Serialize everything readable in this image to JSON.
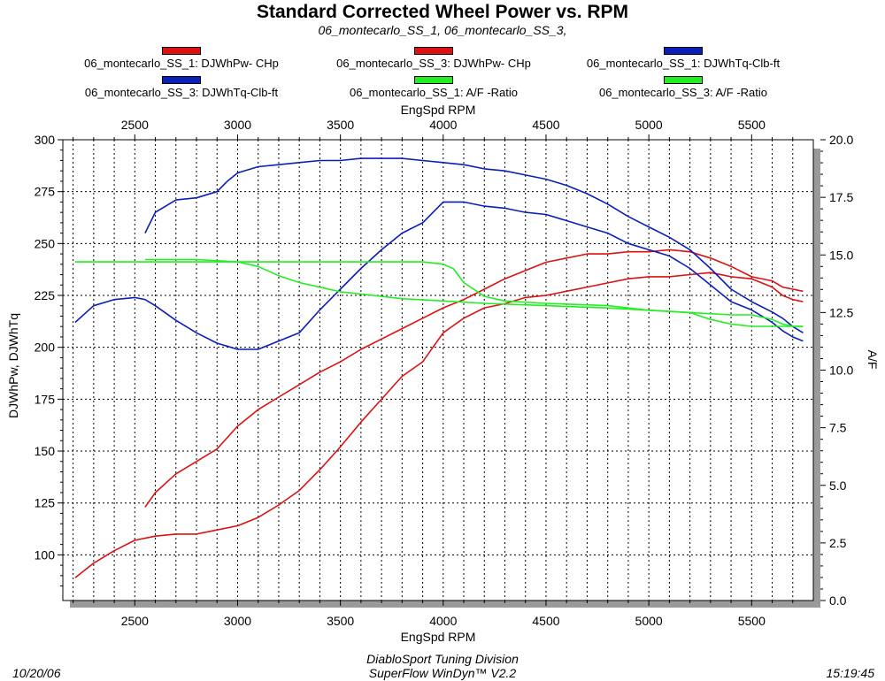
{
  "header": {
    "title": "Standard Corrected Wheel Power vs. RPM",
    "subtitle": "06_montecarlo_SS_1, 06_montecarlo_SS_3,"
  },
  "footer": {
    "date": "10/20/06",
    "line1": "DiabloSport Tuning Division",
    "line2": "SuperFlow WinDyn™ V2.2",
    "time": "15:19:45"
  },
  "chart_data": {
    "type": "line",
    "xlabel_top": "EngSpd  RPM",
    "xlabel_bottom": "EngSpd  RPM",
    "ylabel_left": "DJWhPw, DJWhTq",
    "ylabel_right": "A/F",
    "xlim": [
      2150,
      5800
    ],
    "ylim_left": [
      78,
      300
    ],
    "ylim_right": [
      0,
      20
    ],
    "x_ticks": [
      "2500",
      "3000",
      "3500",
      "4000",
      "4500",
      "5000",
      "5500"
    ],
    "y_left_ticks": [
      "100",
      "125",
      "150",
      "175",
      "200",
      "225",
      "250",
      "275",
      "300"
    ],
    "y_right_ticks": [
      "0.0",
      "2.5",
      "5.0",
      "7.5",
      "10.0",
      "12.5",
      "15.0",
      "17.5",
      "20.0"
    ],
    "grid": true,
    "legend_position": "top",
    "series": [
      {
        "name": "06_montecarlo_SS_1: DJWhPw- CHp",
        "color": "#dd1111",
        "axis": "left",
        "x": [
          2550,
          2600,
          2700,
          2800,
          2900,
          3000,
          3100,
          3200,
          3300,
          3400,
          3500,
          3600,
          3700,
          3800,
          3900,
          4000,
          4100,
          4200,
          4300,
          4400,
          4500,
          4600,
          4700,
          4800,
          4900,
          5000,
          5100,
          5200,
          5300,
          5400,
          5500,
          5600,
          5650,
          5700,
          5750
        ],
        "y": [
          123,
          130,
          139,
          145,
          151,
          162,
          170,
          176,
          182,
          188,
          193,
          199,
          204,
          209,
          214,
          219,
          223,
          228,
          233,
          237,
          241,
          243,
          245,
          245,
          246,
          246,
          247,
          246,
          243,
          239,
          234,
          232,
          229,
          228,
          227
        ]
      },
      {
        "name": "06_montecarlo_SS_3: DJWhPw- CHp",
        "color": "#dd1111",
        "axis": "left",
        "x": [
          2210,
          2300,
          2400,
          2500,
          2600,
          2700,
          2800,
          2900,
          3000,
          3100,
          3200,
          3300,
          3400,
          3500,
          3600,
          3700,
          3800,
          3900,
          4000,
          4100,
          4200,
          4300,
          4400,
          4500,
          4600,
          4700,
          4800,
          4900,
          5000,
          5100,
          5200,
          5300,
          5400,
          5500,
          5600,
          5650,
          5700,
          5750
        ],
        "y": [
          89,
          96,
          102,
          107,
          109,
          110,
          110,
          112,
          114,
          118,
          124,
          131,
          141,
          152,
          164,
          175,
          186,
          193,
          207,
          214,
          219,
          221,
          224,
          225,
          227,
          229,
          231,
          233,
          234,
          234,
          235,
          236,
          234,
          233,
          229,
          225,
          223,
          222
        ]
      },
      {
        "name": "06_montecarlo_SS_1: DJWhTq-Clb-ft",
        "color": "#0a1fb8",
        "axis": "left",
        "x": [
          2550,
          2600,
          2650,
          2700,
          2800,
          2900,
          2950,
          3000,
          3100,
          3200,
          3300,
          3400,
          3500,
          3600,
          3700,
          3800,
          3900,
          4000,
          4100,
          4200,
          4300,
          4400,
          4500,
          4600,
          4700,
          4800,
          4900,
          5000,
          5100,
          5200,
          5300,
          5400,
          5500,
          5600,
          5650,
          5700,
          5750
        ],
        "y": [
          255,
          265,
          268,
          271,
          272,
          275,
          280,
          284,
          287,
          288,
          289,
          290,
          290,
          291,
          291,
          291,
          290,
          289,
          288,
          286,
          285,
          283,
          281,
          278,
          274,
          269,
          263,
          258,
          253,
          247,
          238,
          228,
          222,
          217,
          214,
          210,
          207
        ]
      },
      {
        "name": "06_montecarlo_SS_3: DJWhTq-Clb-ft",
        "color": "#0a1fb8",
        "axis": "left",
        "x": [
          2210,
          2300,
          2400,
          2500,
          2550,
          2600,
          2700,
          2800,
          2900,
          3000,
          3100,
          3200,
          3300,
          3400,
          3500,
          3600,
          3700,
          3800,
          3900,
          4000,
          4100,
          4200,
          4300,
          4400,
          4500,
          4600,
          4700,
          4800,
          4900,
          5000,
          5100,
          5200,
          5300,
          5400,
          5500,
          5600,
          5650,
          5700,
          5750
        ],
        "y": [
          212,
          220,
          223,
          224,
          223,
          220,
          213,
          207,
          202,
          199,
          199,
          203,
          207,
          218,
          228,
          238,
          247,
          255,
          260,
          270,
          270,
          268,
          267,
          265,
          264,
          261,
          258,
          255,
          250,
          247,
          244,
          238,
          230,
          222,
          218,
          212,
          208,
          205,
          203
        ]
      },
      {
        "name": "06_montecarlo_SS_1:  A/F  -Ratio",
        "color": "#22ee22",
        "axis": "right",
        "x": [
          2550,
          2600,
          2800,
          3000,
          3100,
          3200,
          3300,
          3400,
          3500,
          3600,
          3800,
          4000,
          4200,
          4500,
          4800,
          5000,
          5200,
          5400,
          5500,
          5600,
          5650,
          5700,
          5750
        ],
        "y": [
          14.8,
          14.8,
          14.8,
          14.7,
          14.5,
          14.1,
          13.8,
          13.6,
          13.4,
          13.3,
          13.1,
          13.0,
          12.9,
          12.8,
          12.7,
          12.6,
          12.5,
          12.4,
          12.4,
          12.2,
          12.0,
          11.9,
          11.9
        ]
      },
      {
        "name": "06_montecarlo_SS_3:  A/F  -Ratio",
        "color": "#22ee22",
        "axis": "right",
        "x": [
          2210,
          2500,
          3000,
          3500,
          3900,
          4000,
          4050,
          4100,
          4200,
          4300,
          4500,
          4800,
          5000,
          5200,
          5300,
          5400,
          5500,
          5600,
          5650,
          5700,
          5750
        ],
        "y": [
          14.7,
          14.7,
          14.7,
          14.7,
          14.7,
          14.6,
          14.4,
          13.8,
          13.2,
          13.0,
          12.9,
          12.8,
          12.6,
          12.5,
          12.2,
          12.0,
          11.9,
          11.9,
          11.9,
          11.9,
          11.9
        ]
      }
    ]
  }
}
